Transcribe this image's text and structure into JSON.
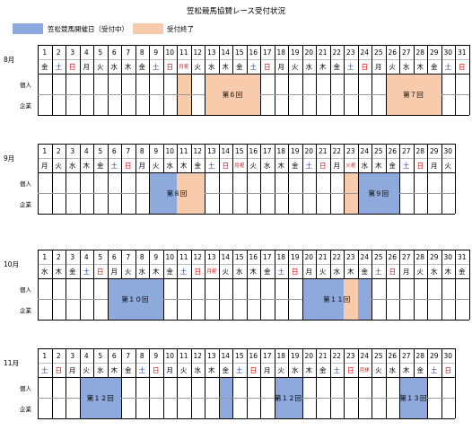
{
  "title": "笠松競馬協賛レース受付状況",
  "legend": [
    {
      "label": "笠松競馬開催日（受付中）",
      "color": "#8EA9DB"
    },
    {
      "label": "受付終了",
      "color": "#F8CBAD"
    }
  ],
  "row_labels": [
    "個人",
    "企業"
  ],
  "colors": {
    "open": "#8EA9DB",
    "closed": "#F8CBAD",
    "sat": "#1F3FA0",
    "sun": "#E00000",
    "grid": "#000000"
  },
  "months": [
    {
      "name": "8月",
      "days": 31,
      "weekdays": [
        "金",
        "土",
        "日",
        "月",
        "火",
        "水",
        "木",
        "金",
        "土",
        "日",
        "月祝",
        "火",
        "水",
        "木",
        "金",
        "土",
        "日",
        "月",
        "火",
        "水",
        "木",
        "金",
        "土",
        "日",
        "月",
        "火",
        "水",
        "木",
        "金",
        "土",
        "日"
      ],
      "blocks": [
        {
          "start": 11,
          "end": 11,
          "state": "closed",
          "label": ""
        },
        {
          "start": 13,
          "end": 16,
          "state": "closed",
          "label": "第６回"
        },
        {
          "start": 26,
          "end": 29,
          "state": "closed",
          "label": "第７回"
        }
      ]
    },
    {
      "name": "9月",
      "days": 30,
      "weekdays": [
        "月",
        "火",
        "水",
        "木",
        "金",
        "土",
        "日",
        "月",
        "火",
        "水",
        "木",
        "金",
        "土",
        "日",
        "月祝",
        "火",
        "水",
        "木",
        "金",
        "土",
        "日",
        "月",
        "火祝",
        "水",
        "木",
        "金",
        "土",
        "日",
        "月",
        "火"
      ],
      "blocks": [
        {
          "start": 9,
          "end": 10,
          "state": "open",
          "label": ""
        },
        {
          "start": 11,
          "end": 12,
          "state": "closed",
          "label": ""
        },
        {
          "start": 23,
          "end": 23,
          "state": "closed",
          "label": ""
        },
        {
          "start": 24,
          "end": 26,
          "state": "open",
          "label": ""
        }
      ],
      "labels": [
        {
          "start": 9,
          "end": 12,
          "label": "第８回"
        },
        {
          "start": 24,
          "end": 26,
          "label": "第９回"
        }
      ]
    },
    {
      "name": "10月",
      "days": 31,
      "weekdays": [
        "水",
        "木",
        "金",
        "土",
        "日",
        "月",
        "火",
        "水",
        "木",
        "金",
        "土",
        "日",
        "月祝",
        "火",
        "水",
        "木",
        "金",
        "土",
        "日",
        "月",
        "火",
        "水",
        "木",
        "金",
        "土",
        "日",
        "月",
        "火",
        "水",
        "木",
        "金"
      ],
      "blocks": [
        {
          "start": 6,
          "end": 9,
          "state": "open",
          "label": ""
        },
        {
          "start": 20,
          "end": 22,
          "state": "open",
          "label": ""
        },
        {
          "start": 23,
          "end": 23,
          "state": "closed",
          "label": ""
        },
        {
          "start": 24,
          "end": 24,
          "state": "open",
          "label": ""
        }
      ],
      "labels": [
        {
          "start": 6,
          "end": 9,
          "label": "第１０回"
        },
        {
          "start": 20,
          "end": 24,
          "label": "第１１回"
        }
      ]
    },
    {
      "name": "11月",
      "days": 30,
      "weekdays": [
        "土",
        "日",
        "月",
        "火",
        "水",
        "木",
        "金",
        "土",
        "日",
        "月",
        "火",
        "水",
        "木",
        "金",
        "土",
        "日",
        "月",
        "火",
        "水",
        "木",
        "金",
        "土",
        "日",
        "月休",
        "火",
        "水",
        "木",
        "金",
        "土",
        "日"
      ],
      "blocks": [
        {
          "start": 4,
          "end": 6,
          "state": "open",
          "label": ""
        },
        {
          "start": 14,
          "end": 14,
          "state": "open",
          "label": ""
        },
        {
          "start": 18,
          "end": 19,
          "state": "open",
          "label": ""
        },
        {
          "start": 27,
          "end": 28,
          "state": "open",
          "label": ""
        }
      ],
      "labels": [
        {
          "start": 4,
          "end": 6,
          "label": "第１２回"
        },
        {
          "start": 18,
          "end": 19,
          "label": "第１２回"
        },
        {
          "start": 27,
          "end": 28,
          "label": "第１３回"
        }
      ]
    }
  ]
}
